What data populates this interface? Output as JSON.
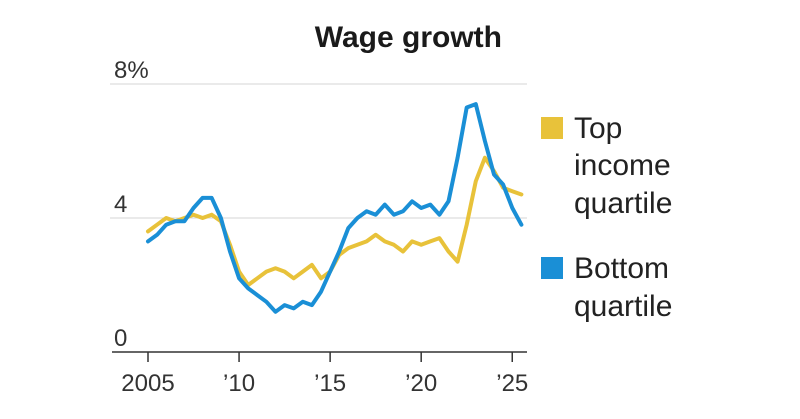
{
  "chart_data": {
    "type": "line",
    "title": "Wage growth",
    "xlabel": "",
    "ylabel": "",
    "xlim": [
      2005,
      2025.7
    ],
    "ylim": [
      0,
      8
    ],
    "y_ticks": [
      {
        "value": 8,
        "label": "8%"
      },
      {
        "value": 4,
        "label": "4"
      },
      {
        "value": 0,
        "label": "0"
      }
    ],
    "x_ticks": [
      {
        "value": 2005,
        "label": "2005"
      },
      {
        "value": 2010,
        "label": "’10"
      },
      {
        "value": 2015,
        "label": "’15"
      },
      {
        "value": 2020,
        "label": "’20"
      },
      {
        "value": 2025,
        "label": "’25"
      }
    ],
    "grid": true,
    "legend_position": "right",
    "series": [
      {
        "name": "Top income quartile",
        "color": "#e8c23a",
        "x": [
          2005.0,
          2005.5,
          2006.0,
          2006.5,
          2007.0,
          2007.5,
          2008.0,
          2008.5,
          2009.0,
          2009.5,
          2010.0,
          2010.5,
          2011.0,
          2011.5,
          2012.0,
          2012.5,
          2013.0,
          2013.5,
          2014.0,
          2014.5,
          2015.0,
          2015.5,
          2016.0,
          2016.5,
          2017.0,
          2017.5,
          2018.0,
          2018.5,
          2019.0,
          2019.5,
          2020.0,
          2020.5,
          2021.0,
          2021.5,
          2022.0,
          2022.5,
          2023.0,
          2023.5,
          2024.0,
          2024.5,
          2025.0,
          2025.5
        ],
        "y": [
          3.6,
          3.8,
          4.0,
          3.9,
          4.0,
          4.1,
          4.0,
          4.1,
          3.9,
          3.2,
          2.4,
          2.0,
          2.2,
          2.4,
          2.5,
          2.4,
          2.2,
          2.4,
          2.6,
          2.2,
          2.4,
          2.9,
          3.1,
          3.2,
          3.3,
          3.5,
          3.3,
          3.2,
          3.0,
          3.3,
          3.2,
          3.3,
          3.4,
          3.0,
          2.7,
          3.8,
          5.1,
          5.8,
          5.4,
          4.9,
          4.8,
          4.7
        ]
      },
      {
        "name": "Bottom quartile",
        "color": "#1a8fd6",
        "x": [
          2005.0,
          2005.5,
          2006.0,
          2006.5,
          2007.0,
          2007.5,
          2008.0,
          2008.5,
          2009.0,
          2009.5,
          2010.0,
          2010.5,
          2011.0,
          2011.5,
          2012.0,
          2012.5,
          2013.0,
          2013.5,
          2014.0,
          2014.5,
          2015.0,
          2015.5,
          2016.0,
          2016.5,
          2017.0,
          2017.5,
          2018.0,
          2018.5,
          2019.0,
          2019.5,
          2020.0,
          2020.5,
          2021.0,
          2021.5,
          2022.0,
          2022.5,
          2023.0,
          2023.5,
          2024.0,
          2024.5,
          2025.0,
          2025.5
        ],
        "y": [
          3.3,
          3.5,
          3.8,
          3.9,
          3.9,
          4.3,
          4.6,
          4.6,
          4.0,
          3.0,
          2.2,
          1.9,
          1.7,
          1.5,
          1.2,
          1.4,
          1.3,
          1.5,
          1.4,
          1.8,
          2.4,
          3.0,
          3.7,
          4.0,
          4.2,
          4.1,
          4.4,
          4.1,
          4.2,
          4.5,
          4.3,
          4.4,
          4.1,
          4.5,
          5.8,
          7.3,
          7.4,
          6.3,
          5.3,
          5.0,
          4.3,
          3.8
        ]
      }
    ]
  }
}
